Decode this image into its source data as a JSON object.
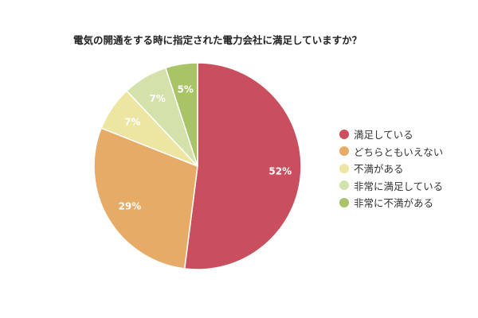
{
  "chart_data": {
    "type": "pie",
    "title": "電気の開通をする時に指定された電力会社に満足していますか？",
    "categories": [
      "満足している",
      "どちらともいえない",
      "不満がある",
      "非常に満足している",
      "非常に不満がある"
    ],
    "values": [
      52,
      29,
      7,
      7,
      5
    ],
    "data_labels": [
      "52%",
      "29%",
      "7%",
      "7%",
      "5%"
    ],
    "colors": [
      "#c94f5f",
      "#e6ab67",
      "#ede5a2",
      "#d3e2ab",
      "#a9c466"
    ],
    "start": "12 o'clock",
    "direction": "clockwise",
    "legend_position": "right"
  }
}
